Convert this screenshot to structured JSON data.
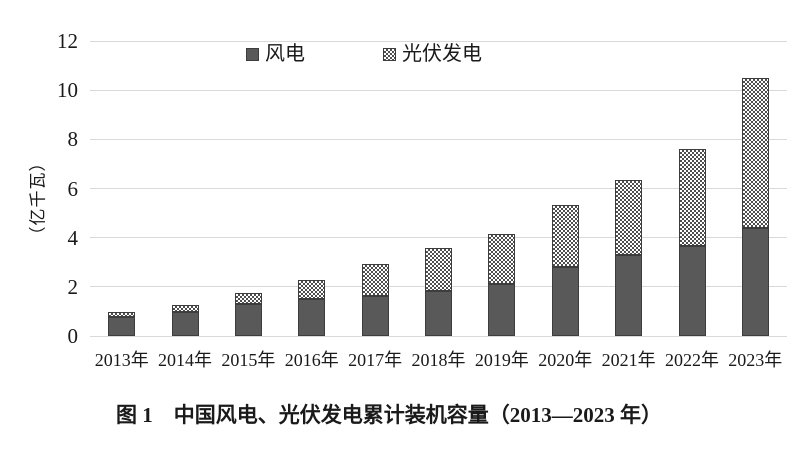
{
  "caption": "图 1　中国风电、光伏发电累计装机容量（2013—2023 年）",
  "y_axis": {
    "title": "（亿千瓦）",
    "ticks": [
      0,
      2,
      4,
      6,
      8,
      10,
      12
    ],
    "max": 12
  },
  "colors": {
    "wind_fill": "#595959",
    "bar_border": "#3d3d3d",
    "pv_dot": "#4f4f4f",
    "gridline": "#d9d9d9",
    "text": "#1a1a1a",
    "background": "#ffffff"
  },
  "chart_data": {
    "type": "bar",
    "stacked": true,
    "title": "图 1　中国风电、光伏发电累计装机容量（2013—2023 年）",
    "xlabel": "",
    "ylabel": "（亿千瓦）",
    "ylim": [
      0,
      12
    ],
    "y_ticks": [
      0,
      2,
      4,
      6,
      8,
      10,
      12
    ],
    "grid": true,
    "legend_position": "top",
    "categories": [
      "2013年",
      "2014年",
      "2015年",
      "2016年",
      "2017年",
      "2018年",
      "2019年",
      "2020年",
      "2021年",
      "2022年",
      "2023年"
    ],
    "series": [
      {
        "name": "风电",
        "style": "solid-dark-gray",
        "values": [
          0.76,
          0.96,
          1.29,
          1.49,
          1.64,
          1.84,
          2.1,
          2.81,
          3.28,
          3.65,
          4.41
        ]
      },
      {
        "name": "光伏发电",
        "style": "dotted-pattern",
        "values": [
          0.19,
          0.28,
          0.43,
          0.77,
          1.3,
          1.74,
          2.04,
          2.53,
          3.06,
          3.93,
          6.09
        ]
      }
    ]
  }
}
